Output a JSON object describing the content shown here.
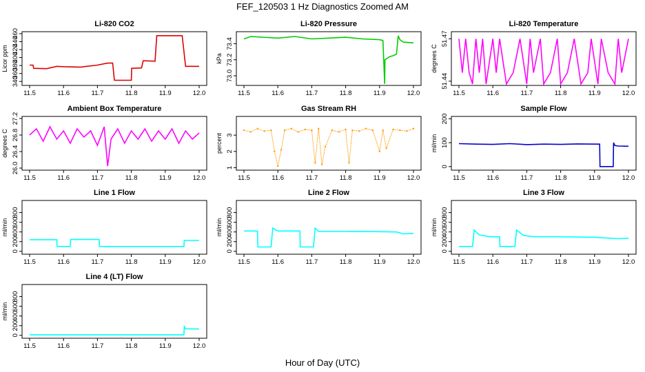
{
  "figure": {
    "title": "FEF_120503  1 Hz Diagnostics Zoomed AM",
    "xlabel": "Hour of Day (UTC)"
  },
  "chart_data": [
    {
      "type": "line",
      "title": "Li-820 CO2",
      "ylabel": "Licor ppm",
      "color": "#dd0000",
      "xlim": [
        11.5,
        12.0
      ],
      "ylim": [
        330,
        465
      ],
      "xticks": [
        11.5,
        11.6,
        11.7,
        11.8,
        11.9,
        12.0
      ],
      "yticks": [
        340,
        360,
        380,
        400,
        420,
        440,
        460
      ],
      "x": [
        11.5,
        11.51,
        11.512,
        11.55,
        11.58,
        11.6,
        11.65,
        11.7,
        11.73,
        11.745,
        11.75,
        11.8,
        11.801,
        11.83,
        11.835,
        11.87,
        11.875,
        11.95,
        11.96,
        12.0
      ],
      "y": [
        381,
        381,
        373,
        372,
        378,
        377,
        376,
        381,
        386,
        386,
        343,
        343,
        373,
        374,
        392,
        391,
        455,
        455,
        378,
        378
      ]
    },
    {
      "type": "line",
      "title": "Li-820 Pressure",
      "ylabel": "kPa",
      "color": "#00cc00",
      "xlim": [
        11.5,
        12.0
      ],
      "ylim": [
        72.88,
        73.55
      ],
      "xticks": [
        11.5,
        11.6,
        11.7,
        11.8,
        11.9,
        12.0
      ],
      "yticks": [
        73.0,
        73.2,
        73.4
      ],
      "x": [
        11.5,
        11.52,
        11.6,
        11.65,
        11.7,
        11.75,
        11.8,
        11.85,
        11.9,
        11.91,
        11.915,
        11.916,
        11.93,
        11.94,
        11.95,
        11.955,
        11.96,
        11.97,
        12.0
      ],
      "y": [
        73.46,
        73.49,
        73.47,
        73.49,
        73.46,
        73.47,
        73.48,
        73.46,
        73.45,
        73.44,
        72.9,
        73.2,
        73.24,
        73.25,
        73.27,
        73.5,
        73.45,
        73.42,
        73.41
      ]
    },
    {
      "type": "line",
      "title": "Li-820 Temperature",
      "ylabel": "degrees C",
      "color": "#ff00ff",
      "xlim": [
        11.5,
        12.0
      ],
      "ylim": [
        51.437,
        51.475
      ],
      "xticks": [
        11.5,
        11.6,
        11.7,
        11.8,
        11.9,
        12.0
      ],
      "yticks": [
        51.44,
        51.47
      ],
      "x": [
        11.5,
        11.51,
        11.52,
        11.53,
        11.54,
        11.55,
        11.56,
        11.57,
        11.58,
        11.6,
        11.61,
        11.62,
        11.64,
        11.66,
        11.68,
        11.7,
        11.71,
        11.72,
        11.74,
        11.75,
        11.77,
        11.79,
        11.8,
        11.82,
        11.84,
        11.86,
        11.88,
        11.89,
        11.91,
        11.92,
        11.94,
        11.96,
        11.97,
        11.98,
        12.0
      ],
      "y": [
        51.47,
        51.446,
        51.47,
        51.446,
        51.438,
        51.47,
        51.446,
        51.47,
        51.438,
        51.47,
        51.446,
        51.47,
        51.438,
        51.446,
        51.47,
        51.438,
        51.47,
        51.446,
        51.47,
        51.438,
        51.446,
        51.47,
        51.438,
        51.446,
        51.47,
        51.438,
        51.446,
        51.47,
        51.438,
        51.47,
        51.446,
        51.438,
        51.47,
        51.446,
        51.47
      ]
    },
    {
      "type": "line",
      "title": "Ambient Box Temperature",
      "ylabel": "degrees C",
      "color": "#ff00ff",
      "xlim": [
        11.5,
        12.0
      ],
      "ylim": [
        25.95,
        27.25
      ],
      "xticks": [
        11.5,
        11.6,
        11.7,
        11.8,
        11.9,
        12.0
      ],
      "yticks": [
        26.0,
        26.4,
        26.8,
        27.2
      ],
      "x": [
        11.5,
        11.52,
        11.54,
        11.56,
        11.58,
        11.6,
        11.62,
        11.64,
        11.66,
        11.68,
        11.7,
        11.72,
        11.73,
        11.74,
        11.76,
        11.78,
        11.8,
        11.82,
        11.84,
        11.86,
        11.88,
        11.9,
        11.92,
        11.94,
        11.96,
        11.98,
        12.0
      ],
      "y": [
        26.8,
        26.95,
        26.65,
        27.0,
        26.7,
        26.9,
        26.6,
        26.95,
        26.75,
        26.9,
        26.55,
        27.0,
        26.05,
        26.7,
        26.95,
        26.6,
        26.9,
        26.7,
        26.95,
        26.65,
        26.9,
        26.7,
        26.95,
        26.6,
        26.9,
        26.7,
        26.85
      ]
    },
    {
      "type": "scatter",
      "title": "Gas Stream RH",
      "ylabel": "percent",
      "color": "#ff9900",
      "xlim": [
        11.5,
        12.0
      ],
      "ylim": [
        0.85,
        4.15
      ],
      "xticks": [
        11.5,
        11.6,
        11.7,
        11.8,
        11.9,
        12.0
      ],
      "yticks": [
        1.0,
        2.0,
        3.0
      ],
      "x": [
        11.5,
        11.52,
        11.54,
        11.56,
        11.58,
        11.59,
        11.6,
        11.61,
        11.62,
        11.64,
        11.66,
        11.68,
        11.7,
        11.71,
        11.72,
        11.73,
        11.74,
        11.76,
        11.78,
        11.8,
        11.81,
        11.82,
        11.84,
        11.86,
        11.88,
        11.9,
        11.91,
        11.92,
        11.94,
        11.96,
        11.98,
        12.0
      ],
      "y": [
        3.3,
        3.2,
        3.4,
        3.25,
        3.3,
        2.0,
        1.1,
        2.1,
        3.3,
        3.4,
        3.2,
        3.35,
        3.3,
        1.3,
        3.4,
        1.2,
        2.3,
        3.3,
        3.2,
        3.35,
        1.3,
        3.3,
        3.25,
        3.4,
        3.3,
        2.0,
        3.3,
        2.2,
        3.35,
        3.3,
        3.25,
        3.4
      ]
    },
    {
      "type": "line",
      "title": "Sample Flow",
      "ylabel": "ml/min",
      "color": "#0000cc",
      "xlim": [
        11.5,
        12.0
      ],
      "ylim": [
        -15,
        210
      ],
      "xticks": [
        11.5,
        11.6,
        11.7,
        11.8,
        11.9,
        12.0
      ],
      "yticks": [
        0,
        100,
        200
      ],
      "x": [
        11.5,
        11.55,
        11.6,
        11.65,
        11.7,
        11.75,
        11.8,
        11.85,
        11.9,
        11.915,
        11.916,
        11.955,
        11.956,
        11.96,
        11.97,
        12.0
      ],
      "y": [
        96,
        94,
        93,
        96,
        92,
        94,
        93,
        95,
        94,
        94,
        0,
        0,
        100,
        88,
        86,
        85
      ]
    },
    {
      "type": "line",
      "title": "Line 1 Flow",
      "ylabel": "ml/min",
      "color": "#00ffff",
      "xlim": [
        11.5,
        12.0
      ],
      "ylim": [
        -60,
        1050
      ],
      "xticks": [
        11.5,
        11.6,
        11.7,
        11.8,
        11.9,
        12.0
      ],
      "yticks": [
        0,
        200,
        400,
        600,
        800
      ],
      "x": [
        11.5,
        11.58,
        11.581,
        11.62,
        11.621,
        11.705,
        11.706,
        11.955,
        11.956,
        12.0
      ],
      "y": [
        240,
        240,
        100,
        100,
        245,
        245,
        100,
        100,
        225,
        225
      ]
    },
    {
      "type": "line",
      "title": "Line 2 Flow",
      "ylabel": "ml/min",
      "color": "#00ffff",
      "xlim": [
        11.5,
        12.0
      ],
      "ylim": [
        -60,
        1050
      ],
      "xticks": [
        11.5,
        11.6,
        11.7,
        11.8,
        11.9,
        12.0
      ],
      "yticks": [
        0,
        200,
        400,
        600,
        800
      ],
      "x": [
        11.5,
        11.54,
        11.541,
        11.58,
        11.585,
        11.6,
        11.665,
        11.666,
        11.705,
        11.71,
        11.72,
        11.8,
        11.9,
        11.95,
        11.97,
        12.0
      ],
      "y": [
        420,
        420,
        90,
        90,
        480,
        420,
        420,
        90,
        90,
        480,
        410,
        410,
        405,
        400,
        360,
        370
      ]
    },
    {
      "type": "line",
      "title": "Line 3 Flow",
      "ylabel": "ml/min",
      "color": "#00ffff",
      "xlim": [
        11.5,
        12.0
      ],
      "ylim": [
        -60,
        1050
      ],
      "xticks": [
        11.5,
        11.6,
        11.7,
        11.8,
        11.9,
        12.0
      ],
      "yticks": [
        0,
        200,
        400,
        600,
        800
      ],
      "x": [
        11.5,
        11.54,
        11.545,
        11.56,
        11.59,
        11.62,
        11.621,
        11.665,
        11.67,
        11.69,
        11.72,
        11.8,
        11.9,
        11.97,
        12.0
      ],
      "y": [
        100,
        100,
        440,
        340,
        300,
        300,
        100,
        100,
        440,
        330,
        300,
        300,
        290,
        260,
        270
      ]
    },
    {
      "type": "line",
      "title": "Line 4 (LT) Flow",
      "ylabel": "ml/min",
      "color": "#00ffff",
      "xlim": [
        11.5,
        12.0
      ],
      "ylim": [
        -60,
        1050
      ],
      "xticks": [
        11.5,
        11.6,
        11.7,
        11.8,
        11.9,
        12.0
      ],
      "yticks": [
        0,
        200,
        400,
        600,
        800
      ],
      "x": [
        11.5,
        11.7,
        11.955,
        11.956,
        11.96,
        12.0
      ],
      "y": [
        10,
        10,
        10,
        180,
        135,
        130
      ]
    }
  ]
}
